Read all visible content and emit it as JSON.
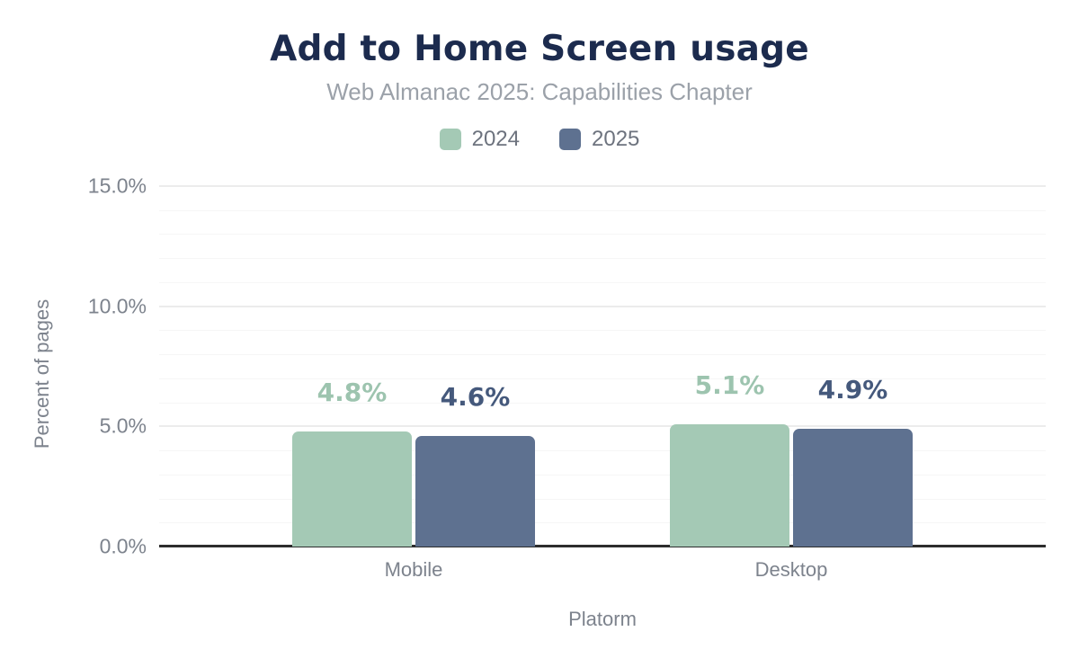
{
  "header": {
    "title": "Add to Home Screen usage",
    "subtitle": "Web Almanac 2025: Capabilities Chapter"
  },
  "colors": {
    "title": "#1c2b4e",
    "subtitle": "#9ba1a9",
    "legend_text": "#6d737e",
    "axis_text": "#7d838d",
    "grid_minor": "#f6f6f6",
    "grid_major": "#ececec",
    "axis_line": "#2d2d2d",
    "series_2024": "#a4c9b5",
    "series_2025": "#5e7190"
  },
  "chart_data": {
    "type": "bar",
    "title": "Add to Home Screen usage",
    "subtitle": "Web Almanac 2025: Capabilities Chapter",
    "categories": [
      "Mobile",
      "Desktop"
    ],
    "series": [
      {
        "name": "2024",
        "color": "#a4c9b5",
        "label_color": "#9dc4af",
        "values": [
          4.8,
          5.1
        ],
        "data_labels": [
          "4.8%",
          "5.1%"
        ]
      },
      {
        "name": "2025",
        "color": "#5e7190",
        "label_color": "#45597c",
        "values": [
          4.6,
          4.9
        ],
        "data_labels": [
          "4.6%",
          "4.9%"
        ]
      }
    ],
    "xlabel": "Platorm",
    "ylabel": "Percent of pages",
    "ylim": [
      0,
      15
    ],
    "ytick_values": [
      0,
      5,
      10,
      15
    ],
    "ytick_labels": [
      "0.0%",
      "5.0%",
      "10.0%",
      "15.0%"
    ],
    "minor_grid_step": 1,
    "major_grid_step": 5,
    "grid": "horizontal",
    "legend_position": "top",
    "data_labels_shown": true
  }
}
